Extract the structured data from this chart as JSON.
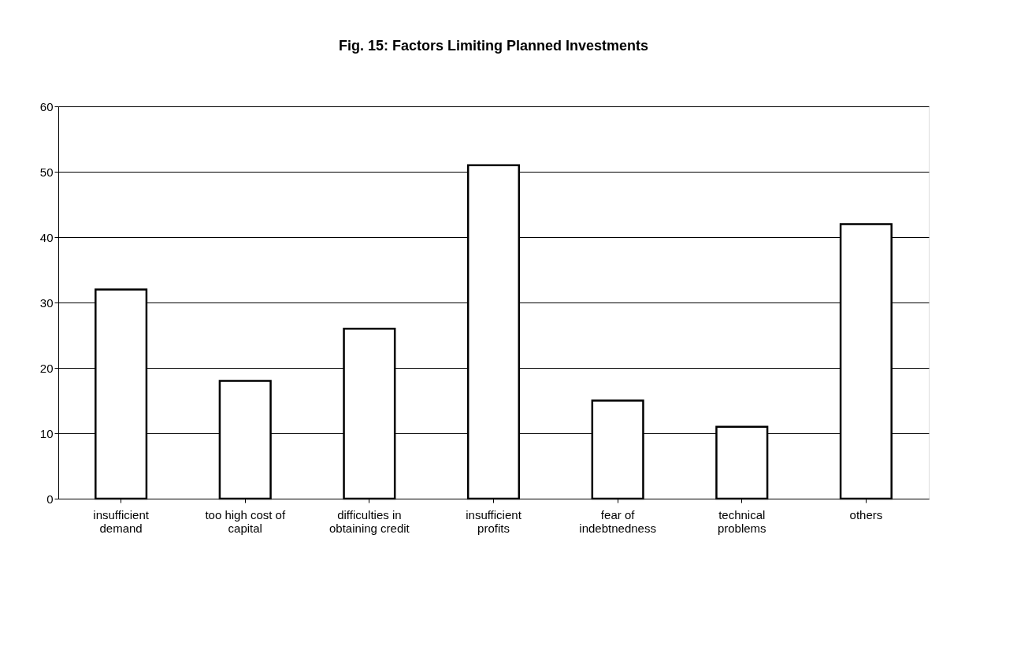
{
  "chart_data": {
    "type": "bar",
    "title": "Fig. 15: Factors Limiting Planned Investments",
    "categories": [
      "insufficient demand",
      "too high cost of capital",
      "difficulties in obtaining credit",
      "insufficient profits",
      "fear of indebtnedness",
      "technical problems",
      "others"
    ],
    "values": [
      32,
      18,
      26,
      51,
      15,
      11,
      42
    ],
    "color": "#ffffff",
    "ylim": [
      0,
      60
    ],
    "yticks": [
      0,
      10,
      20,
      30,
      40,
      50,
      60
    ],
    "grid": "y"
  }
}
